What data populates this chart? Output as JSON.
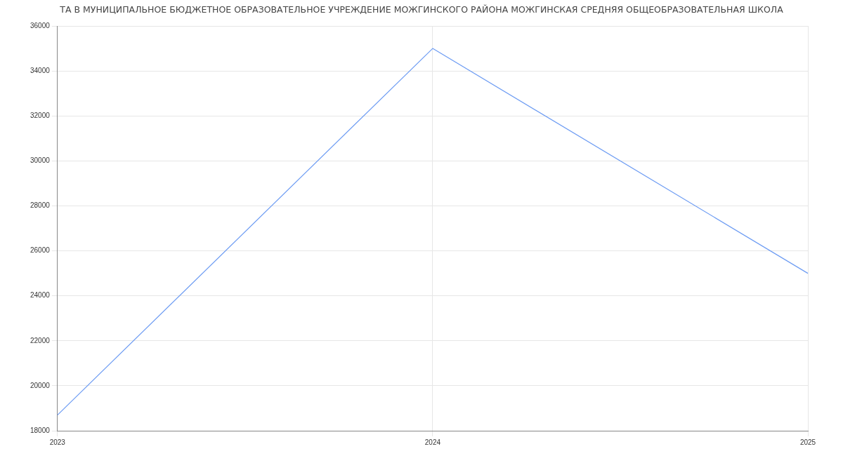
{
  "chart_data": {
    "type": "line",
    "title": "ТА В МУНИЦИПАЛЬНОЕ БЮДЖЕТНОЕ ОБРАЗОВАТЕЛЬНОЕ УЧРЕЖДЕНИЕ МОЖГИНСКОГО РАЙОНА МОЖГИНСКАЯ СРЕДНЯЯ ОБЩЕОБРАЗОВАТЕЛЬНАЯ ШКОЛА",
    "categories": [
      "2023",
      "2024",
      "2025"
    ],
    "series": [
      {
        "color": "#6d9cf3",
        "values": [
          18700,
          35000,
          25000
        ]
      }
    ],
    "ylim": [
      18000,
      36000
    ],
    "yticks": [
      18000,
      20000,
      22000,
      24000,
      26000,
      28000,
      30000,
      32000,
      34000,
      36000
    ],
    "grid": true,
    "marker": "none",
    "line_style": "solid"
  }
}
